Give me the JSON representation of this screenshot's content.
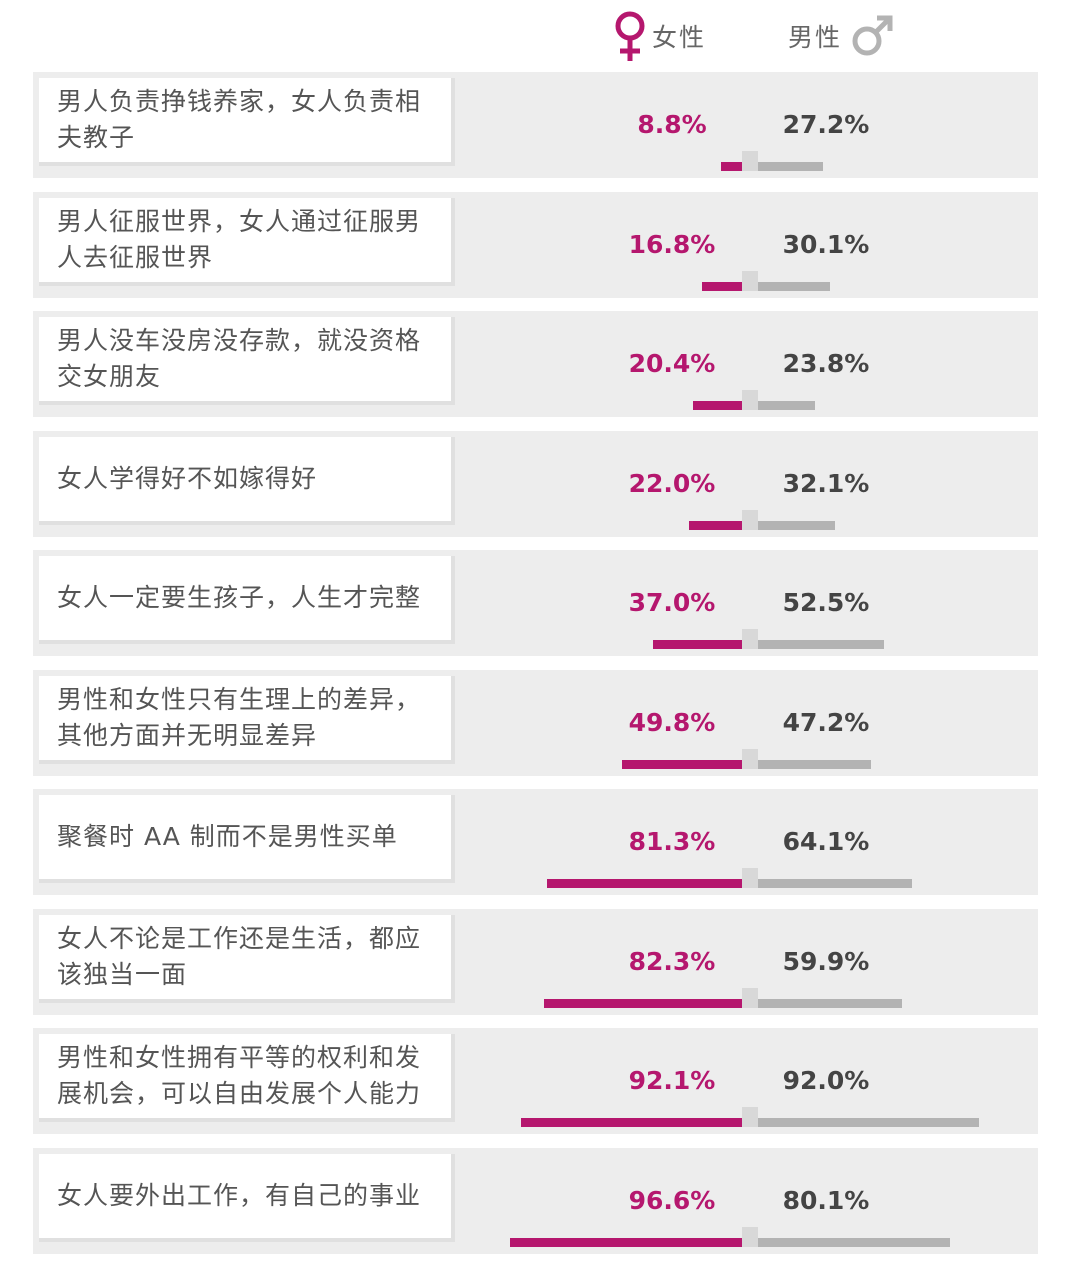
{
  "legend": {
    "female_label": "女性",
    "male_label": "男性",
    "female_icon": "female-symbol-icon",
    "male_icon": "male-symbol-icon",
    "female_color": "#b5176e",
    "male_color": "#b3b3b3"
  },
  "chart_data": {
    "type": "bar",
    "categories": [
      "男人负责挣钱养家，女人负责相夫教子",
      "男人征服世界，女人通过征服男人去征服世界",
      "男人没车没房没存款，就没资格交女朋友",
      "女人学得好不如嫁得好",
      "女人一定要生孩子，人生才完整",
      "男性和女性只有生理上的差异，其他方面并无明显差异",
      "聚餐时 AA 制而不是男性买单",
      "女人不论是工作还是生活，都应该独当一面",
      "男性和女性拥有平等的权利和发展机会，可以自由发展个人能力",
      "女人要外出工作，有自己的事业"
    ],
    "series": [
      {
        "name": "女性",
        "values": [
          8.8,
          16.8,
          20.4,
          22.0,
          37.0,
          49.8,
          81.3,
          82.3,
          92.1,
          96.6
        ],
        "labels": [
          "8.8%",
          "16.8%",
          "20.4%",
          "22.0%",
          "37.0%",
          "49.8%",
          "81.3%",
          "82.3%",
          "92.1%",
          "96.6%"
        ],
        "color": "#b5176e"
      },
      {
        "name": "男性",
        "values": [
          27.2,
          30.1,
          23.8,
          32.1,
          52.5,
          47.2,
          64.1,
          59.9,
          92.0,
          80.1
        ],
        "labels": [
          "27.2%",
          "30.1%",
          "23.8%",
          "32.1%",
          "52.5%",
          "47.2%",
          "64.1%",
          "59.9%",
          "92.0%",
          "80.1%"
        ],
        "color": "#b3b3b3"
      }
    ],
    "ylim": [
      0,
      100
    ],
    "legend_position": "top"
  }
}
